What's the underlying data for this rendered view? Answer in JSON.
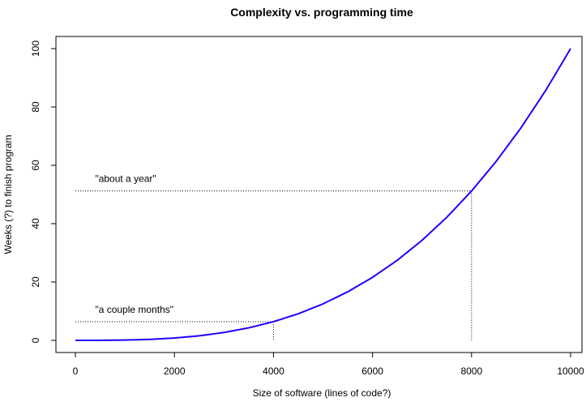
{
  "chart_data": {
    "type": "line",
    "title": "Complexity vs. programming time",
    "xlabel": "Size of software (lines of code?)",
    "ylabel": "Weeks (?) to finish program",
    "xlim": [
      0,
      10000
    ],
    "ylim": [
      0,
      100
    ],
    "x_ticks": [
      0,
      2000,
      4000,
      6000,
      8000,
      10000
    ],
    "y_ticks": [
      0,
      20,
      40,
      60,
      80,
      100
    ],
    "grid": false,
    "legend": "none",
    "series": [
      {
        "color": "#1f00ff",
        "x": [
          0,
          500,
          1000,
          1500,
          2000,
          2500,
          3000,
          3500,
          4000,
          4500,
          5000,
          5500,
          6000,
          6500,
          7000,
          7500,
          8000,
          8500,
          9000,
          9500,
          10000
        ],
        "y": [
          0,
          0.01,
          0.1,
          0.34,
          0.8,
          1.56,
          2.7,
          4.29,
          6.4,
          9.11,
          12.5,
          16.64,
          21.6,
          27.46,
          34.3,
          42.19,
          51.2,
          61.41,
          72.9,
          85.74,
          100
        ]
      }
    ],
    "reference_lines": [
      {
        "x": 4000,
        "y": 6.4
      },
      {
        "x": 8000,
        "y": 51.2
      }
    ],
    "annotations": [
      {
        "text": "\"a couple months\"",
        "x": 400,
        "y": 9.5
      },
      {
        "text": "\"about a year\"",
        "x": 400,
        "y": 54.3
      }
    ]
  }
}
